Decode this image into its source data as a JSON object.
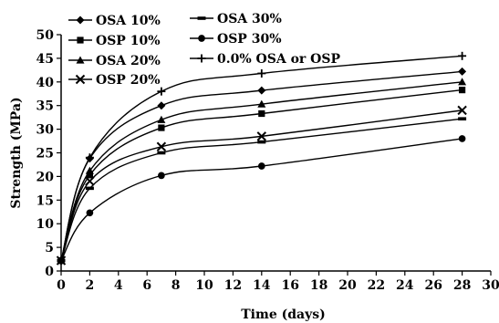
{
  "chart_data": {
    "type": "line",
    "xlabel": "Time (days)",
    "ylabel": "Strength (MPa)",
    "xlim": [
      0,
      30
    ],
    "ylim": [
      0,
      50
    ],
    "xticks": [
      "0",
      "2",
      "4",
      "6",
      "8",
      "10",
      "12",
      "14",
      "16",
      "18",
      "20",
      "22",
      "24",
      "26",
      "28",
      "30"
    ],
    "yticks": [
      "0",
      "5",
      "10",
      "15",
      "20",
      "25",
      "30",
      "35",
      "40",
      "45",
      "50"
    ],
    "grid": false,
    "legend_placement": "top-left",
    "x": [
      0,
      2,
      7,
      14,
      28
    ],
    "series": [
      {
        "name": "OSA 10%",
        "marker": "diamond",
        "values": [
          2.2,
          23.8,
          35,
          38.2,
          42.2
        ]
      },
      {
        "name": "OSP 10%",
        "marker": "square",
        "values": [
          2.2,
          20.3,
          30.3,
          33.3,
          38.3
        ]
      },
      {
        "name": "OSA 20%",
        "marker": "triangle",
        "values": [
          2.2,
          21.2,
          32,
          35.3,
          40
        ]
      },
      {
        "name": "OSP 20%",
        "marker": "x",
        "values": [
          2.2,
          19,
          26.3,
          28.5,
          34
        ]
      },
      {
        "name": "OSA 30%",
        "marker": "dash",
        "values": [
          2.2,
          17.5,
          25,
          27.3,
          32.2
        ]
      },
      {
        "name": "OSP 30%",
        "marker": "circle",
        "values": [
          2.2,
          12.3,
          20.2,
          22.2,
          28
        ]
      },
      {
        "name": "0.0% OSA or OSP",
        "marker": "plus",
        "values": [
          2.2,
          24,
          38,
          41.8,
          45.5
        ]
      }
    ]
  }
}
